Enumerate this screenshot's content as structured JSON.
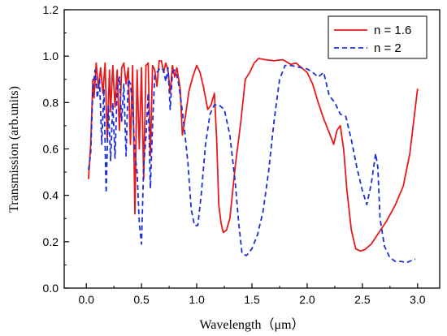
{
  "chart_data": {
    "type": "line",
    "xlabel": "Wavelength（μm）",
    "ylabel": "Transmission  (arb.units)",
    "xlim": [
      -0.2,
      3.2
    ],
    "ylim": [
      0.0,
      1.2
    ],
    "x_ticks": [
      "0.0",
      "0.5",
      "1.0",
      "1.5",
      "2.0",
      "2.5",
      "3.0"
    ],
    "y_ticks": [
      "0.0",
      "0.2",
      "0.4",
      "0.6",
      "0.8",
      "1.0",
      "1.2"
    ],
    "grid": false,
    "legend_position": "top-right",
    "series": [
      {
        "name": "n = 1.6",
        "color": "#e8191a",
        "dash": "solid",
        "points": [
          [
            0.02,
            0.47
          ],
          [
            0.04,
            0.62
          ],
          [
            0.06,
            0.9
          ],
          [
            0.07,
            0.82
          ],
          [
            0.09,
            0.97
          ],
          [
            0.11,
            0.86
          ],
          [
            0.13,
            0.95
          ],
          [
            0.15,
            0.84
          ],
          [
            0.17,
            0.97
          ],
          [
            0.19,
            0.64
          ],
          [
            0.21,
            0.94
          ],
          [
            0.22,
            0.76
          ],
          [
            0.24,
            0.96
          ],
          [
            0.26,
            0.78
          ],
          [
            0.28,
            0.94
          ],
          [
            0.3,
            0.68
          ],
          [
            0.32,
            0.95
          ],
          [
            0.34,
            0.97
          ],
          [
            0.36,
            0.88
          ],
          [
            0.38,
            0.95
          ],
          [
            0.4,
            0.62
          ],
          [
            0.42,
            0.96
          ],
          [
            0.44,
            0.32
          ],
          [
            0.46,
            0.94
          ],
          [
            0.48,
            0.6
          ],
          [
            0.5,
            0.95
          ],
          [
            0.52,
            0.47
          ],
          [
            0.54,
            0.96
          ],
          [
            0.56,
            0.97
          ],
          [
            0.58,
            0.57
          ],
          [
            0.6,
            0.96
          ],
          [
            0.62,
            0.94
          ],
          [
            0.64,
            0.87
          ],
          [
            0.66,
            0.98
          ],
          [
            0.68,
            0.98
          ],
          [
            0.7,
            0.93
          ],
          [
            0.72,
            0.97
          ],
          [
            0.74,
            0.94
          ],
          [
            0.76,
            0.84
          ],
          [
            0.78,
            0.96
          ],
          [
            0.8,
            0.91
          ],
          [
            0.82,
            0.95
          ],
          [
            0.85,
            0.86
          ],
          [
            0.87,
            0.66
          ],
          [
            0.9,
            0.75
          ],
          [
            0.93,
            0.85
          ],
          [
            0.97,
            0.92
          ],
          [
            1.0,
            0.96
          ],
          [
            1.03,
            0.93
          ],
          [
            1.06,
            0.87
          ],
          [
            1.1,
            0.77
          ],
          [
            1.13,
            0.79
          ],
          [
            1.16,
            0.84
          ],
          [
            1.18,
            0.65
          ],
          [
            1.2,
            0.36
          ],
          [
            1.22,
            0.28
          ],
          [
            1.24,
            0.24
          ],
          [
            1.27,
            0.25
          ],
          [
            1.3,
            0.3
          ],
          [
            1.35,
            0.53
          ],
          [
            1.4,
            0.72
          ],
          [
            1.44,
            0.9
          ],
          [
            1.48,
            0.93
          ],
          [
            1.52,
            0.97
          ],
          [
            1.56,
            0.99
          ],
          [
            1.62,
            0.985
          ],
          [
            1.7,
            0.98
          ],
          [
            1.78,
            0.985
          ],
          [
            1.85,
            0.965
          ],
          [
            1.9,
            0.97
          ],
          [
            1.95,
            0.95
          ],
          [
            2.0,
            0.93
          ],
          [
            2.05,
            0.88
          ],
          [
            2.1,
            0.8
          ],
          [
            2.15,
            0.73
          ],
          [
            2.2,
            0.67
          ],
          [
            2.24,
            0.62
          ],
          [
            2.27,
            0.68
          ],
          [
            2.3,
            0.7
          ],
          [
            2.33,
            0.6
          ],
          [
            2.36,
            0.42
          ],
          [
            2.4,
            0.25
          ],
          [
            2.44,
            0.17
          ],
          [
            2.48,
            0.16
          ],
          [
            2.52,
            0.165
          ],
          [
            2.58,
            0.19
          ],
          [
            2.65,
            0.24
          ],
          [
            2.72,
            0.29
          ],
          [
            2.8,
            0.36
          ],
          [
            2.87,
            0.44
          ],
          [
            2.93,
            0.58
          ],
          [
            2.97,
            0.74
          ],
          [
            3.0,
            0.86
          ]
        ]
      },
      {
        "name": "n = 2",
        "color": "#1c2fd6",
        "dash": "dashed",
        "points": [
          [
            0.02,
            0.51
          ],
          [
            0.04,
            0.58
          ],
          [
            0.06,
            0.86
          ],
          [
            0.08,
            0.94
          ],
          [
            0.1,
            0.82
          ],
          [
            0.12,
            0.9
          ],
          [
            0.14,
            0.62
          ],
          [
            0.16,
            0.86
          ],
          [
            0.18,
            0.41
          ],
          [
            0.2,
            0.79
          ],
          [
            0.22,
            0.55
          ],
          [
            0.24,
            0.8
          ],
          [
            0.26,
            0.56
          ],
          [
            0.28,
            0.86
          ],
          [
            0.3,
            0.91
          ],
          [
            0.32,
            0.72
          ],
          [
            0.34,
            0.88
          ],
          [
            0.36,
            0.57
          ],
          [
            0.38,
            0.9
          ],
          [
            0.4,
            0.88
          ],
          [
            0.42,
            0.78
          ],
          [
            0.44,
            0.58
          ],
          [
            0.46,
            0.5
          ],
          [
            0.48,
            0.28
          ],
          [
            0.5,
            0.19
          ],
          [
            0.52,
            0.53
          ],
          [
            0.54,
            0.65
          ],
          [
            0.56,
            0.84
          ],
          [
            0.58,
            0.43
          ],
          [
            0.6,
            0.7
          ],
          [
            0.62,
            0.92
          ],
          [
            0.64,
            0.93
          ],
          [
            0.67,
            0.95
          ],
          [
            0.7,
            0.94
          ],
          [
            0.72,
            0.89
          ],
          [
            0.74,
            0.95
          ],
          [
            0.76,
            0.77
          ],
          [
            0.78,
            0.93
          ],
          [
            0.8,
            0.94
          ],
          [
            0.83,
            0.9
          ],
          [
            0.86,
            0.8
          ],
          [
            0.89,
            0.68
          ],
          [
            0.92,
            0.54
          ],
          [
            0.95,
            0.34
          ],
          [
            0.98,
            0.27
          ],
          [
            1.01,
            0.27
          ],
          [
            1.04,
            0.4
          ],
          [
            1.08,
            0.62
          ],
          [
            1.12,
            0.75
          ],
          [
            1.16,
            0.79
          ],
          [
            1.2,
            0.79
          ],
          [
            1.25,
            0.77
          ],
          [
            1.3,
            0.66
          ],
          [
            1.35,
            0.45
          ],
          [
            1.38,
            0.28
          ],
          [
            1.41,
            0.15
          ],
          [
            1.45,
            0.14
          ],
          [
            1.5,
            0.17
          ],
          [
            1.55,
            0.23
          ],
          [
            1.6,
            0.33
          ],
          [
            1.65,
            0.5
          ],
          [
            1.7,
            0.72
          ],
          [
            1.75,
            0.9
          ],
          [
            1.8,
            0.96
          ],
          [
            1.85,
            0.96
          ],
          [
            1.9,
            0.955
          ],
          [
            1.95,
            0.95
          ],
          [
            2.0,
            0.945
          ],
          [
            2.05,
            0.93
          ],
          [
            2.1,
            0.91
          ],
          [
            2.15,
            0.93
          ],
          [
            2.2,
            0.83
          ],
          [
            2.25,
            0.8
          ],
          [
            2.3,
            0.75
          ],
          [
            2.35,
            0.74
          ],
          [
            2.4,
            0.64
          ],
          [
            2.45,
            0.52
          ],
          [
            2.5,
            0.42
          ],
          [
            2.54,
            0.36
          ],
          [
            2.58,
            0.45
          ],
          [
            2.62,
            0.58
          ],
          [
            2.64,
            0.52
          ],
          [
            2.66,
            0.3
          ],
          [
            2.7,
            0.18
          ],
          [
            2.75,
            0.13
          ],
          [
            2.8,
            0.115
          ],
          [
            2.85,
            0.115
          ],
          [
            2.9,
            0.11
          ],
          [
            2.95,
            0.12
          ],
          [
            2.98,
            0.125
          ]
        ]
      }
    ]
  }
}
